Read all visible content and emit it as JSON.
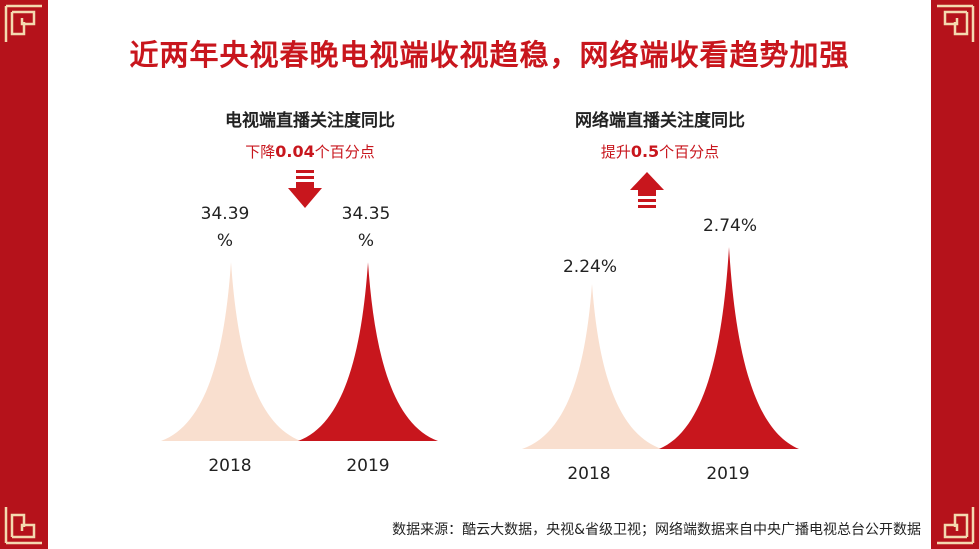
{
  "title": "近两年央视春晚电视端收视趋稳，网络端收看趋势加强",
  "source": "数据来源：酷云大数据，央视&省级卫视；网络端数据来自中央广播电视总台公开数据",
  "colors": {
    "primary": "#c8161d",
    "light": "#f9dfcf",
    "border": "#b5121b"
  },
  "chart_data": [
    {
      "type": "bar",
      "title": "电视端直播关注度同比",
      "change_prefix": "下降",
      "change_value": "0.04",
      "change_suffix": "个百分点",
      "direction": "down",
      "categories": [
        "2018",
        "2019"
      ],
      "values": [
        34.39,
        34.35
      ],
      "labels": [
        "34.39",
        "34.35"
      ],
      "unit": "%"
    },
    {
      "type": "bar",
      "title": "网络端直播关注度同比",
      "change_prefix": "提升",
      "change_value": "0.5",
      "change_suffix": "个百分点",
      "direction": "up",
      "categories": [
        "2018",
        "2019"
      ],
      "values": [
        2.24,
        2.74
      ],
      "labels": [
        "2.24%",
        "2.74%"
      ]
    }
  ]
}
